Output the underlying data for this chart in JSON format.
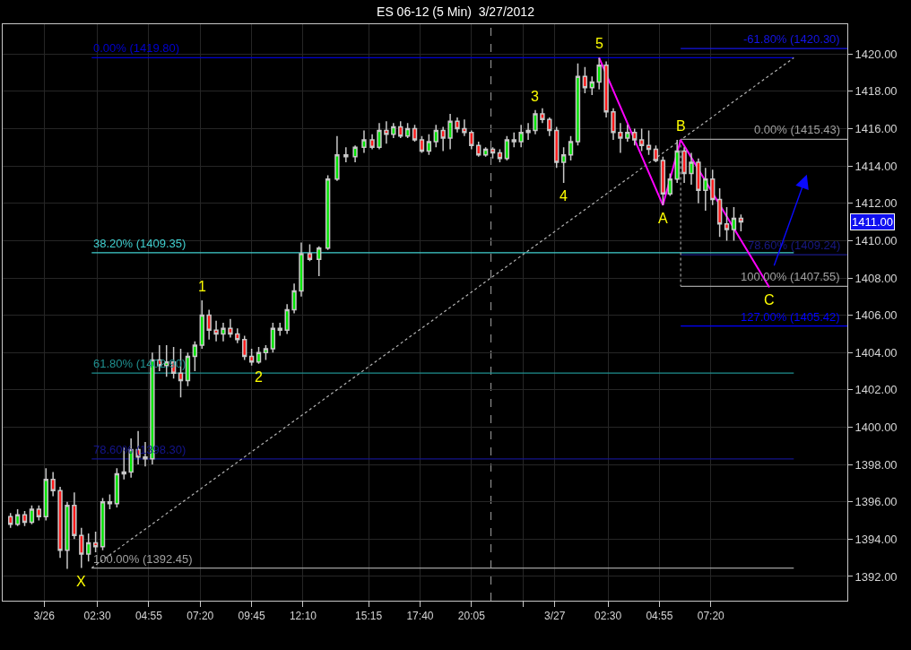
{
  "chart_data": {
    "type": "candlestick",
    "title": "ES 06-12 (5 Min)  3/27/2012",
    "x": [
      "2012-03-25T22:25",
      "2012-03-25T22:45",
      "2012-03-25T23:05",
      "2012-03-25T23:25",
      "2012-03-25T23:45",
      "2012-03-26T00:05",
      "2012-03-26T00:25",
      "2012-03-26T00:45",
      "2012-03-26T01:05",
      "2012-03-26T01:25",
      "2012-03-26T01:45",
      "2012-03-26T02:05",
      "2012-03-26T02:25",
      "2012-03-26T02:45",
      "2012-03-26T03:05",
      "2012-03-26T03:25",
      "2012-03-26T03:45",
      "2012-03-26T04:05",
      "2012-03-26T04:25",
      "2012-03-26T04:45",
      "2012-03-26T05:05",
      "2012-03-26T05:25",
      "2012-03-26T05:45",
      "2012-03-26T06:05",
      "2012-03-26T06:25",
      "2012-03-26T06:45",
      "2012-03-26T07:05",
      "2012-03-26T07:25",
      "2012-03-26T07:45",
      "2012-03-26T08:05",
      "2012-03-26T08:25",
      "2012-03-26T08:45",
      "2012-03-26T09:05",
      "2012-03-26T09:25",
      "2012-03-26T09:45",
      "2012-03-26T10:05",
      "2012-03-26T10:25",
      "2012-03-26T10:45",
      "2012-03-26T11:05",
      "2012-03-26T11:25",
      "2012-03-26T11:45",
      "2012-03-26T12:05",
      "2012-03-26T12:29",
      "2012-03-26T12:55",
      "2012-03-26T13:20",
      "2012-03-26T13:46",
      "2012-03-26T14:11",
      "2012-03-26T14:37",
      "2012-03-26T15:02",
      "2012-03-26T15:25",
      "2012-03-26T15:45",
      "2012-03-26T16:05",
      "2012-03-26T16:25",
      "2012-03-26T16:45",
      "2012-03-26T17:05",
      "2012-03-26T17:25",
      "2012-03-26T17:45",
      "2012-03-26T18:05",
      "2012-03-26T18:25",
      "2012-03-26T18:45",
      "2012-03-26T19:05",
      "2012-03-26T19:25",
      "2012-03-26T19:45",
      "2012-03-26T20:05",
      "2012-03-26T20:25",
      "2012-03-26T20:45",
      "2012-03-26T21:05",
      "2012-03-26T21:25",
      "2012-03-26T21:45",
      "2012-03-26T22:05",
      "2012-03-26T22:25",
      "2012-03-26T22:45",
      "2012-03-26T23:05",
      "2012-03-26T23:25",
      "2012-03-26T23:45",
      "2012-03-27T00:05",
      "2012-03-27T00:25",
      "2012-03-27T00:45",
      "2012-03-27T01:05",
      "2012-03-27T01:25",
      "2012-03-27T01:45",
      "2012-03-27T02:05",
      "2012-03-27T02:25",
      "2012-03-27T02:45",
      "2012-03-27T03:05",
      "2012-03-27T03:25",
      "2012-03-27T03:45",
      "2012-03-27T04:05",
      "2012-03-27T04:25",
      "2012-03-27T04:45",
      "2012-03-27T05:05",
      "2012-03-27T05:25",
      "2012-03-27T05:45",
      "2012-03-27T06:05",
      "2012-03-27T06:25",
      "2012-03-27T06:45",
      "2012-03-27T07:05",
      "2012-03-27T07:25",
      "2012-03-27T07:45",
      "2012-03-27T08:05",
      "2012-03-27T08:25",
      "2012-03-27T08:45"
    ],
    "ohlc": [
      [
        1395.2,
        1395.4,
        1394.6,
        1394.8
      ],
      [
        1394.8,
        1395.6,
        1394.7,
        1395.3
      ],
      [
        1395.3,
        1395.5,
        1394.7,
        1394.9
      ],
      [
        1394.9,
        1395.8,
        1394.8,
        1395.6
      ],
      [
        1395.6,
        1395.8,
        1395.0,
        1395.2
      ],
      [
        1395.2,
        1397.8,
        1395.0,
        1397.2
      ],
      [
        1397.2,
        1397.6,
        1396.3,
        1396.6
      ],
      [
        1396.6,
        1396.8,
        1393.0,
        1393.4
      ],
      [
        1393.4,
        1396.0,
        1392.4,
        1395.8
      ],
      [
        1395.8,
        1396.5,
        1394.0,
        1394.2
      ],
      [
        1394.2,
        1394.6,
        1392.45,
        1393.2
      ],
      [
        1393.2,
        1394.3,
        1392.8,
        1393.8
      ],
      [
        1393.8,
        1394.4,
        1393.3,
        1393.6
      ],
      [
        1393.6,
        1396.2,
        1393.4,
        1396.0
      ],
      [
        1396.0,
        1396.4,
        1395.6,
        1395.9
      ],
      [
        1395.9,
        1397.8,
        1395.7,
        1397.5
      ],
      [
        1397.5,
        1398.9,
        1397.2,
        1397.6
      ],
      [
        1397.6,
        1399.4,
        1397.3,
        1398.8
      ],
      [
        1398.8,
        1399.8,
        1398.0,
        1398.4
      ],
      [
        1398.4,
        1399.2,
        1397.9,
        1398.3
      ],
      [
        1398.3,
        1404.0,
        1398.0,
        1403.6
      ],
      [
        1403.6,
        1404.4,
        1403.0,
        1403.3
      ],
      [
        1403.3,
        1404.4,
        1402.7,
        1403.5
      ],
      [
        1403.5,
        1404.3,
        1402.6,
        1402.9
      ],
      [
        1402.9,
        1404.2,
        1401.6,
        1402.5
      ],
      [
        1402.5,
        1404.0,
        1402.2,
        1403.8
      ],
      [
        1403.8,
        1404.6,
        1403.0,
        1404.4
      ],
      [
        1404.4,
        1406.8,
        1404.2,
        1406.0
      ],
      [
        1406.0,
        1406.3,
        1404.7,
        1405.2
      ],
      [
        1405.2,
        1405.7,
        1404.6,
        1405.0
      ],
      [
        1405.0,
        1405.6,
        1404.6,
        1405.3
      ],
      [
        1405.3,
        1405.8,
        1404.8,
        1405.0
      ],
      [
        1405.0,
        1405.3,
        1404.5,
        1404.7
      ],
      [
        1404.7,
        1404.9,
        1403.6,
        1403.8
      ],
      [
        1403.8,
        1404.2,
        1403.3,
        1403.5
      ],
      [
        1403.5,
        1404.3,
        1403.4,
        1404.0
      ],
      [
        1404.0,
        1404.4,
        1403.6,
        1404.2
      ],
      [
        1404.2,
        1405.6,
        1404.0,
        1405.3
      ],
      [
        1405.3,
        1405.6,
        1404.9,
        1405.2
      ],
      [
        1405.2,
        1406.6,
        1405.0,
        1406.3
      ],
      [
        1406.3,
        1407.7,
        1406.1,
        1407.3
      ],
      [
        1407.3,
        1409.9,
        1407.0,
        1409.3
      ],
      [
        1409.3,
        1409.8,
        1408.9,
        1409.0
      ],
      [
        1409.0,
        1409.7,
        1408.1,
        1409.6
      ],
      [
        1409.6,
        1413.5,
        1409.5,
        1413.3
      ],
      [
        1413.3,
        1415.6,
        1413.2,
        1414.6
      ],
      [
        1414.6,
        1415.0,
        1414.2,
        1414.5
      ],
      [
        1414.5,
        1415.1,
        1414.2,
        1415.0
      ],
      [
        1415.0,
        1415.9,
        1414.7,
        1415.4
      ],
      [
        1415.4,
        1415.7,
        1414.9,
        1415.0
      ],
      [
        1415.0,
        1416.3,
        1414.9,
        1415.9
      ],
      [
        1415.9,
        1416.4,
        1415.2,
        1415.7
      ],
      [
        1415.7,
        1416.3,
        1415.5,
        1416.1
      ],
      [
        1416.1,
        1416.4,
        1415.5,
        1415.6
      ],
      [
        1415.6,
        1416.3,
        1415.5,
        1416.0
      ],
      [
        1416.0,
        1416.2,
        1415.3,
        1415.4
      ],
      [
        1415.4,
        1415.6,
        1414.7,
        1414.8
      ],
      [
        1414.8,
        1415.7,
        1414.6,
        1415.3
      ],
      [
        1415.3,
        1416.2,
        1415.0,
        1415.9
      ],
      [
        1415.9,
        1416.1,
        1414.8,
        1415.5
      ],
      [
        1415.5,
        1416.8,
        1414.9,
        1416.4
      ],
      [
        1416.4,
        1416.6,
        1415.8,
        1416.0
      ],
      [
        1416.0,
        1416.5,
        1415.6,
        1415.8
      ],
      [
        1415.8,
        1415.9,
        1414.9,
        1415.1
      ],
      [
        1415.1,
        1415.3,
        1414.5,
        1414.6
      ],
      [
        1414.6,
        1415.0,
        1414.5,
        1414.9
      ],
      [
        1414.9,
        1415.0,
        1414.4,
        1414.7
      ],
      [
        1414.7,
        1414.9,
        1414.2,
        1414.4
      ],
      [
        1414.4,
        1415.6,
        1414.3,
        1415.4
      ],
      [
        1415.4,
        1415.8,
        1415.0,
        1415.3
      ],
      [
        1415.3,
        1416.2,
        1415.0,
        1415.8
      ],
      [
        1415.8,
        1416.3,
        1415.4,
        1415.9
      ],
      [
        1415.9,
        1417.0,
        1415.7,
        1416.8
      ],
      [
        1416.8,
        1417.1,
        1416.3,
        1416.5
      ],
      [
        1416.5,
        1416.6,
        1415.6,
        1415.9
      ],
      [
        1415.9,
        1416.1,
        1413.9,
        1414.2
      ],
      [
        1414.2,
        1415.0,
        1413.1,
        1414.6
      ],
      [
        1414.6,
        1415.6,
        1414.3,
        1415.3
      ],
      [
        1415.3,
        1419.5,
        1415.1,
        1418.8
      ],
      [
        1418.8,
        1419.3,
        1417.9,
        1418.2
      ],
      [
        1418.2,
        1418.8,
        1417.8,
        1418.5
      ],
      [
        1418.5,
        1419.8,
        1418.1,
        1419.4
      ],
      [
        1419.4,
        1419.6,
        1416.6,
        1416.9
      ],
      [
        1416.9,
        1417.1,
        1415.4,
        1415.8
      ],
      [
        1415.8,
        1416.3,
        1414.7,
        1415.5
      ],
      [
        1415.5,
        1416.2,
        1415.3,
        1415.8
      ],
      [
        1415.8,
        1416.0,
        1415.1,
        1415.4
      ],
      [
        1415.4,
        1416.0,
        1414.8,
        1415.1
      ],
      [
        1415.1,
        1415.9,
        1414.6,
        1414.9
      ],
      [
        1414.9,
        1415.1,
        1414.2,
        1414.3
      ],
      [
        1414.3,
        1414.5,
        1411.9,
        1412.5
      ],
      [
        1412.5,
        1413.6,
        1412.4,
        1413.3
      ],
      [
        1413.3,
        1415.4,
        1413.1,
        1414.8
      ],
      [
        1414.8,
        1415.0,
        1413.1,
        1413.6
      ],
      [
        1413.6,
        1414.7,
        1413.0,
        1414.2
      ],
      [
        1414.2,
        1414.4,
        1412.0,
        1412.7
      ],
      [
        1412.7,
        1413.9,
        1411.6,
        1413.3
      ],
      [
        1413.3,
        1413.8,
        1411.9,
        1412.2
      ],
      [
        1412.2,
        1412.8,
        1410.2,
        1410.9
      ],
      [
        1410.9,
        1411.8,
        1410.0,
        1410.6
      ],
      [
        1410.6,
        1411.8,
        1410.0,
        1411.2
      ],
      [
        1411.2,
        1411.4,
        1410.5,
        1411.0
      ]
    ],
    "series": [
      {
        "type": "line",
        "name": "0.00% (1419.80)",
        "color": "#0000d0",
        "x": [
          "2012-03-26T02:14",
          "2012-03-27T11:14"
        ],
        "values": [
          1419.8,
          1419.8
        ]
      },
      {
        "type": "line",
        "name": "38.20% (1409.35)",
        "color": "#40d0d0",
        "x": [
          "2012-03-26T02:14",
          "2012-03-27T11:14"
        ],
        "values": [
          1409.35,
          1409.35
        ]
      },
      {
        "type": "line",
        "name": "61.80% (1402.90)",
        "color": "#1f8f8f",
        "x": [
          "2012-03-26T02:14",
          "2012-03-27T11:14"
        ],
        "values": [
          1402.9,
          1402.9
        ]
      },
      {
        "type": "line",
        "name": "78.60% (1398.30)",
        "color": "#14148c",
        "x": [
          "2012-03-26T02:14",
          "2012-03-27T11:14"
        ],
        "values": [
          1398.3,
          1398.3
        ]
      },
      {
        "type": "line",
        "name": "100.00% (1392.45)",
        "color": "#a0a0a0",
        "x": [
          "2012-03-26T02:14",
          "2012-03-27T11:14"
        ],
        "values": [
          1392.45,
          1392.45
        ]
      },
      {
        "type": "line",
        "color": "#b4b4b4",
        "line_style": "dotted",
        "x": [
          "2012-03-26T02:14",
          "2012-03-27T11:14"
        ],
        "values": [
          1392.45,
          1419.8
        ]
      },
      {
        "type": "line",
        "name": "-61.80% (1420.30)",
        "color": "#1414e6",
        "x": [
          "2012-03-27T05:55",
          "2012-03-27T13:45"
        ],
        "values": [
          1420.3,
          1420.3
        ]
      },
      {
        "type": "line",
        "name": "0.00% (1415.43)",
        "color": "#a0a0a0",
        "x": [
          "2012-03-27T05:55",
          "2012-03-27T13:45"
        ],
        "values": [
          1415.43,
          1415.43
        ]
      },
      {
        "type": "line",
        "name": "78.60% (1409.24)",
        "color": "#181884",
        "x": [
          "2012-03-27T05:55",
          "2012-03-27T13:45"
        ],
        "values": [
          1409.24,
          1409.24
        ]
      },
      {
        "type": "line",
        "name": "100.00% (1407.55)",
        "color": "#a0a0a0",
        "x": [
          "2012-03-27T05:55",
          "2012-03-27T13:45"
        ],
        "values": [
          1407.55,
          1407.55
        ]
      },
      {
        "type": "line",
        "name": "127.00% (1405.42)",
        "color": "#0000ff",
        "x": [
          "2012-03-27T05:55",
          "2012-03-27T13:45"
        ],
        "values": [
          1405.42,
          1405.42
        ]
      },
      {
        "type": "line",
        "color": "#a0a0a0",
        "line_style": "dotted",
        "x": [
          "2012-03-27T05:55",
          "2012-03-27T05:55"
        ],
        "values": [
          1415.43,
          1407.55
        ]
      },
      {
        "type": "line",
        "color": "#ff00ff",
        "x": [
          "2012-03-27T02:05",
          "2012-03-27T05:05",
          "2012-03-27T05:55",
          "2012-03-27T10:05"
        ],
        "values": [
          1419.8,
          1411.9,
          1415.4,
          1407.5
        ]
      }
    ],
    "xlim": [
      "2012-03-25T22:03",
      "2012-03-27T13:45"
    ],
    "xticks": [
      {
        "value": "2012-03-26",
        "label": "3/26"
      },
      {
        "value": "2012-03-26T02:30",
        "label": "02:30"
      },
      {
        "value": "2012-03-26T04:55",
        "label": "04:55"
      },
      {
        "value": "2012-03-26T07:20",
        "label": "07:20"
      },
      {
        "value": "2012-03-26T09:45",
        "label": "09:45"
      },
      {
        "value": "2012-03-26T12:10",
        "label": "12:10"
      },
      {
        "value": "2012-03-26T15:15",
        "label": "15:15"
      },
      {
        "value": "2012-03-26T17:40",
        "label": "17:40"
      },
      {
        "value": "2012-03-26T20:05",
        "label": "20:05"
      },
      {
        "value": "2012-03-26T22:30",
        "label": null
      },
      {
        "value": "2012-03-27",
        "label": "3/27"
      },
      {
        "value": "2012-03-27T02:30",
        "label": "02:30"
      },
      {
        "value": "2012-03-27T04:55",
        "label": "04:55"
      },
      {
        "value": "2012-03-27T07:20",
        "label": "07:20"
      }
    ],
    "ylim": [
      1390.7,
      1421.6
    ],
    "yticks": [
      {
        "value": 1392,
        "label": "1392.00"
      },
      {
        "value": 1394,
        "label": "1394.00"
      },
      {
        "value": 1396,
        "label": "1396.00"
      },
      {
        "value": 1398,
        "label": "1398.00"
      },
      {
        "value": 1400,
        "label": "1400.00"
      },
      {
        "value": 1402,
        "label": "1402.00"
      },
      {
        "value": 1404,
        "label": "1404.00"
      },
      {
        "value": 1406,
        "label": "1406.00"
      },
      {
        "value": 1408,
        "label": "1408.00"
      },
      {
        "value": 1410,
        "label": "1410.00"
      },
      {
        "value": 1412,
        "label": "1412.00"
      },
      {
        "value": 1414,
        "label": "1414.00"
      },
      {
        "value": 1416,
        "label": "1416.00"
      },
      {
        "value": 1418,
        "label": "1418.00"
      },
      {
        "value": 1420,
        "label": "1420.00"
      }
    ],
    "grid": true,
    "ref_lines": [
      {
        "axis": "x",
        "value": "2012-03-26T21:00",
        "color": "#a0a0a0",
        "line_style": "dashed"
      }
    ],
    "annotations": [
      {
        "text": "X",
        "x": "2012-03-26T01:45",
        "y": 1392.45
      },
      {
        "text": "1",
        "x": "2012-03-26T07:25",
        "y": 1406.8
      },
      {
        "text": "2",
        "x": "2012-03-26T10:05",
        "y": 1403.4
      },
      {
        "text": "3",
        "x": "2012-03-26T23:05",
        "y": 1417.0
      },
      {
        "text": "4",
        "x": "2012-03-27T00:25",
        "y": 1413.1
      },
      {
        "text": "5",
        "x": "2012-03-27T02:05",
        "y": 1419.8
      },
      {
        "text": "A",
        "x": "2012-03-27T05:05",
        "y": 1411.9
      },
      {
        "text": "B",
        "x": "2012-03-27T05:55",
        "y": 1415.4
      },
      {
        "text": "C",
        "x": "2012-03-27T10:05",
        "y": 1407.5
      },
      "1411.00"
    ]
  }
}
